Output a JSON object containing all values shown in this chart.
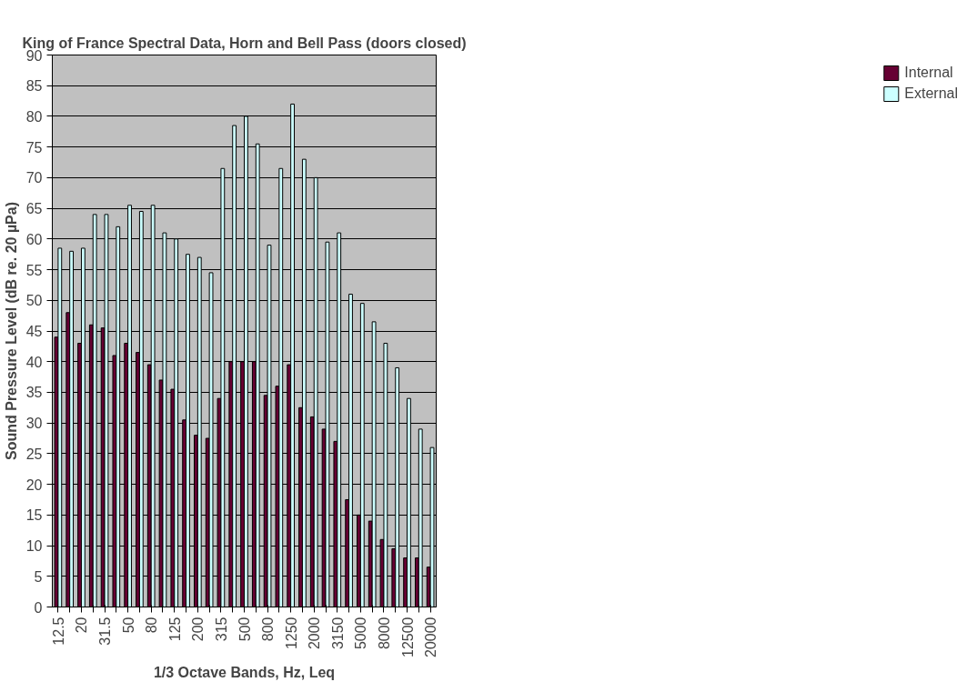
{
  "chart_data": {
    "type": "bar",
    "title": "King of France Spectral Data, Horn and Bell Pass (doors closed)",
    "xlabel": "1/3 Octave Bands, Hz, Leq",
    "ylabel": "Sound Pressure Level (dB re. 20 µPa)",
    "categories": [
      "12.5",
      null,
      "20",
      null,
      "31.5",
      null,
      "50",
      null,
      "80",
      null,
      "125",
      null,
      "200",
      null,
      "315",
      null,
      "500",
      null,
      "800",
      null,
      "1250",
      null,
      "2000",
      null,
      "3150",
      null,
      "5000",
      null,
      "8000",
      null,
      "12500",
      null,
      "20000"
    ],
    "series": [
      {
        "name": "Internal",
        "color": "#660033",
        "values": [
          44,
          48,
          43,
          46,
          45.5,
          41,
          43,
          41.5,
          39.5,
          37,
          35.5,
          30.5,
          28,
          27.5,
          34,
          40,
          40,
          40,
          34.5,
          36,
          39.5,
          32.5,
          31,
          29,
          27,
          17.5,
          15,
          14,
          11,
          9.5,
          8,
          8,
          6.5
        ]
      },
      {
        "name": "External",
        "color": "#ccffff",
        "values": [
          58.5,
          58,
          58.5,
          64,
          64,
          62,
          65.5,
          64.5,
          65.5,
          61,
          60,
          57.5,
          57,
          54.5,
          71.5,
          78.5,
          80,
          75.5,
          59,
          71.5,
          82,
          73,
          70,
          59.5,
          61,
          51,
          49.5,
          46.5,
          43,
          39,
          34,
          29,
          26
        ]
      }
    ],
    "ylim": [
      0,
      90
    ],
    "yticks": [
      0,
      5,
      10,
      15,
      20,
      25,
      30,
      35,
      40,
      45,
      50,
      55,
      60,
      65,
      70,
      75,
      80,
      85,
      90
    ],
    "grid": "y",
    "legend": "right"
  }
}
